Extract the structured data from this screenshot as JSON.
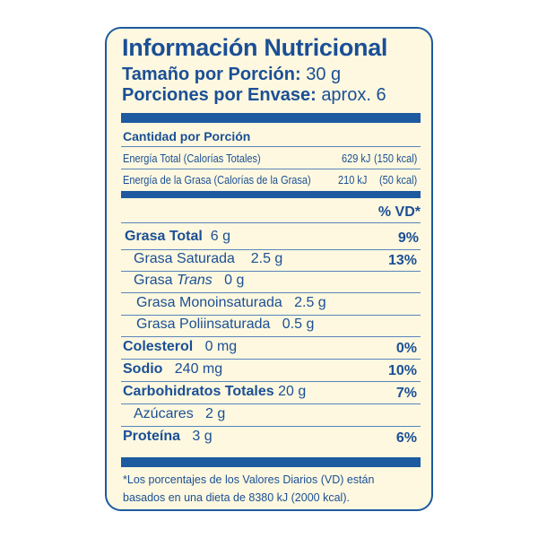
{
  "title": "Información Nutricional",
  "serving_size": {
    "label": "Tamaño por Porción:",
    "value": "30 g"
  },
  "servings_per_container": {
    "label": "Porciones por Envase:",
    "value": "aprox. 6"
  },
  "amount_per_serving": "Cantidad por Porción",
  "energy": [
    {
      "label": "Energía Total (Calorías Totales)",
      "kj": "629 kJ",
      "kcal": "(150 kcal)"
    },
    {
      "label": "Energía de la Grasa (Calorías de la Grasa)",
      "kj": "210 kJ",
      "kcal": "(50 kcal)"
    }
  ],
  "dv_header": "% VD*",
  "nutrients": [
    {
      "name": "Grasa Total",
      "amount": "6 g",
      "dv": "9%"
    },
    {
      "name": "Grasa Saturada",
      "amount": "2.5 g",
      "dv": "13%"
    },
    {
      "name": "Grasa",
      "name_italic": "Trans",
      "amount": "0 g",
      "dv": ""
    },
    {
      "name": "Grasa Monoinsaturada",
      "amount": "2.5 g",
      "dv": ""
    },
    {
      "name": "Grasa Poliinsaturada",
      "amount": "0.5 g",
      "dv": ""
    },
    {
      "name": "Colesterol",
      "amount": "0 mg",
      "dv": "0%"
    },
    {
      "name": "Sodio",
      "amount": "240 mg",
      "dv": "10%"
    },
    {
      "name": "Carbohidratos Totales",
      "amount": "20 g",
      "dv": "7%"
    },
    {
      "name": "Azúcares",
      "amount": "2 g",
      "dv": ""
    },
    {
      "name": "Proteína",
      "amount": "3 g",
      "dv": "6%"
    }
  ],
  "footnote": [
    "*Los porcentajes de los Valores Diarios (VD) están",
    "basados en una dieta de 8380 kJ (2000 kcal)."
  ],
  "colors": {
    "primary": "#1d5aa0",
    "background": "#fdf8df"
  }
}
